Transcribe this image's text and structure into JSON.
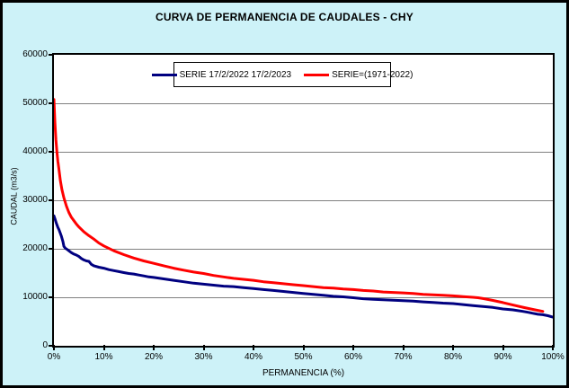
{
  "window": {
    "title": "CURVA DE PERMANENCIA DE CAUDALES - CHY"
  },
  "colors": {
    "background": "#CDF2F8",
    "plot_background": "#FFFFFF",
    "grid": "#808080",
    "axis": "#000000",
    "series_blue": "#000080",
    "series_red": "#FF0000"
  },
  "y_axis": {
    "title": "CAUDAL (m3/s)",
    "ticks": [
      "60000",
      "50000",
      "40000",
      "30000",
      "20000",
      "10000",
      "0"
    ],
    "min": 0,
    "max": 60000
  },
  "x_axis": {
    "title": "PERMANENCIA (%)",
    "ticks": [
      "0%",
      "10%",
      "20%",
      "30%",
      "40%",
      "50%",
      "60%",
      "70%",
      "80%",
      "90%",
      "100%"
    ],
    "min": 0,
    "max": 100
  },
  "legend": {
    "items": [
      {
        "label": "SERIE 17/2/2022 17/2/2023",
        "color": "#000080"
      },
      {
        "label": "SERIE=(1971-2022)",
        "color": "#FF0000"
      }
    ]
  },
  "chart_data": {
    "type": "line",
    "title": "CURVA DE PERMANENCIA DE CAUDALES - CHY",
    "xlabel": "PERMANENCIA (%)",
    "ylabel": "CAUDAL (m3/s)",
    "xlim": [
      0,
      100
    ],
    "ylim": [
      0,
      60000
    ],
    "grid": true,
    "legend_position": "top-center-inside",
    "series": [
      {
        "name": "SERIE 17/2/2022 17/2/2023",
        "color": "#000080",
        "x": [
          0,
          0.2,
          0.5,
          0.8,
          1,
          1.2,
          1.5,
          1.8,
          2,
          2.3,
          2.6,
          3,
          3.5,
          4,
          4.5,
          5,
          5.5,
          6,
          6.5,
          7,
          7.5,
          8,
          9,
          10,
          11,
          12,
          13,
          14,
          15,
          16,
          17,
          18,
          19,
          20,
          22,
          24,
          26,
          28,
          30,
          32,
          34,
          36,
          38,
          40,
          42,
          44,
          46,
          48,
          50,
          52,
          54,
          56,
          58,
          60,
          62,
          64,
          66,
          68,
          70,
          72,
          74,
          76,
          78,
          80,
          82,
          84,
          86,
          88,
          90,
          92,
          94,
          95,
          96,
          97,
          98,
          99,
          100
        ],
        "values": [
          26800,
          26200,
          25200,
          24400,
          24000,
          23400,
          22600,
          21500,
          20500,
          20100,
          19900,
          19600,
          19200,
          18900,
          18700,
          18400,
          18000,
          17700,
          17500,
          17400,
          16800,
          16500,
          16200,
          16000,
          15700,
          15500,
          15300,
          15100,
          14900,
          14800,
          14600,
          14400,
          14200,
          14100,
          13800,
          13500,
          13200,
          12900,
          12700,
          12500,
          12300,
          12200,
          12000,
          11800,
          11600,
          11400,
          11200,
          11000,
          10800,
          10600,
          10400,
          10200,
          10100,
          9900,
          9700,
          9600,
          9500,
          9400,
          9300,
          9200,
          9050,
          8950,
          8800,
          8700,
          8500,
          8300,
          8100,
          7900,
          7600,
          7400,
          7100,
          6900,
          6700,
          6500,
          6400,
          6200,
          5900
        ]
      },
      {
        "name": "SERIE=(1971-2022)",
        "color": "#FF0000",
        "x": [
          0,
          0.2,
          0.4,
          0.6,
          0.8,
          1,
          1.3,
          1.6,
          2,
          2.5,
          3,
          3.5,
          4,
          4.5,
          5,
          6,
          7,
          8,
          9,
          10,
          12,
          14,
          16,
          18,
          20,
          22,
          24,
          26,
          28,
          30,
          32,
          34,
          36,
          38,
          40,
          42,
          44,
          46,
          48,
          50,
          52,
          54,
          56,
          58,
          60,
          62,
          64,
          66,
          68,
          70,
          72,
          74,
          76,
          78,
          80,
          82,
          84,
          85,
          86,
          88,
          90,
          92,
          94,
          96,
          97,
          98
        ],
        "values": [
          50800,
          46000,
          42500,
          40000,
          38000,
          36500,
          34000,
          32200,
          30500,
          28800,
          27500,
          26500,
          25800,
          25100,
          24500,
          23500,
          22700,
          22000,
          21200,
          20600,
          19600,
          18800,
          18100,
          17500,
          17000,
          16500,
          16000,
          15600,
          15200,
          14900,
          14500,
          14200,
          13900,
          13700,
          13500,
          13200,
          13000,
          12800,
          12600,
          12400,
          12200,
          12000,
          11900,
          11700,
          11600,
          11400,
          11300,
          11100,
          11000,
          10900,
          10800,
          10600,
          10500,
          10400,
          10300,
          10150,
          10000,
          9900,
          9750,
          9350,
          8900,
          8400,
          7950,
          7500,
          7300,
          7100
        ]
      }
    ]
  }
}
